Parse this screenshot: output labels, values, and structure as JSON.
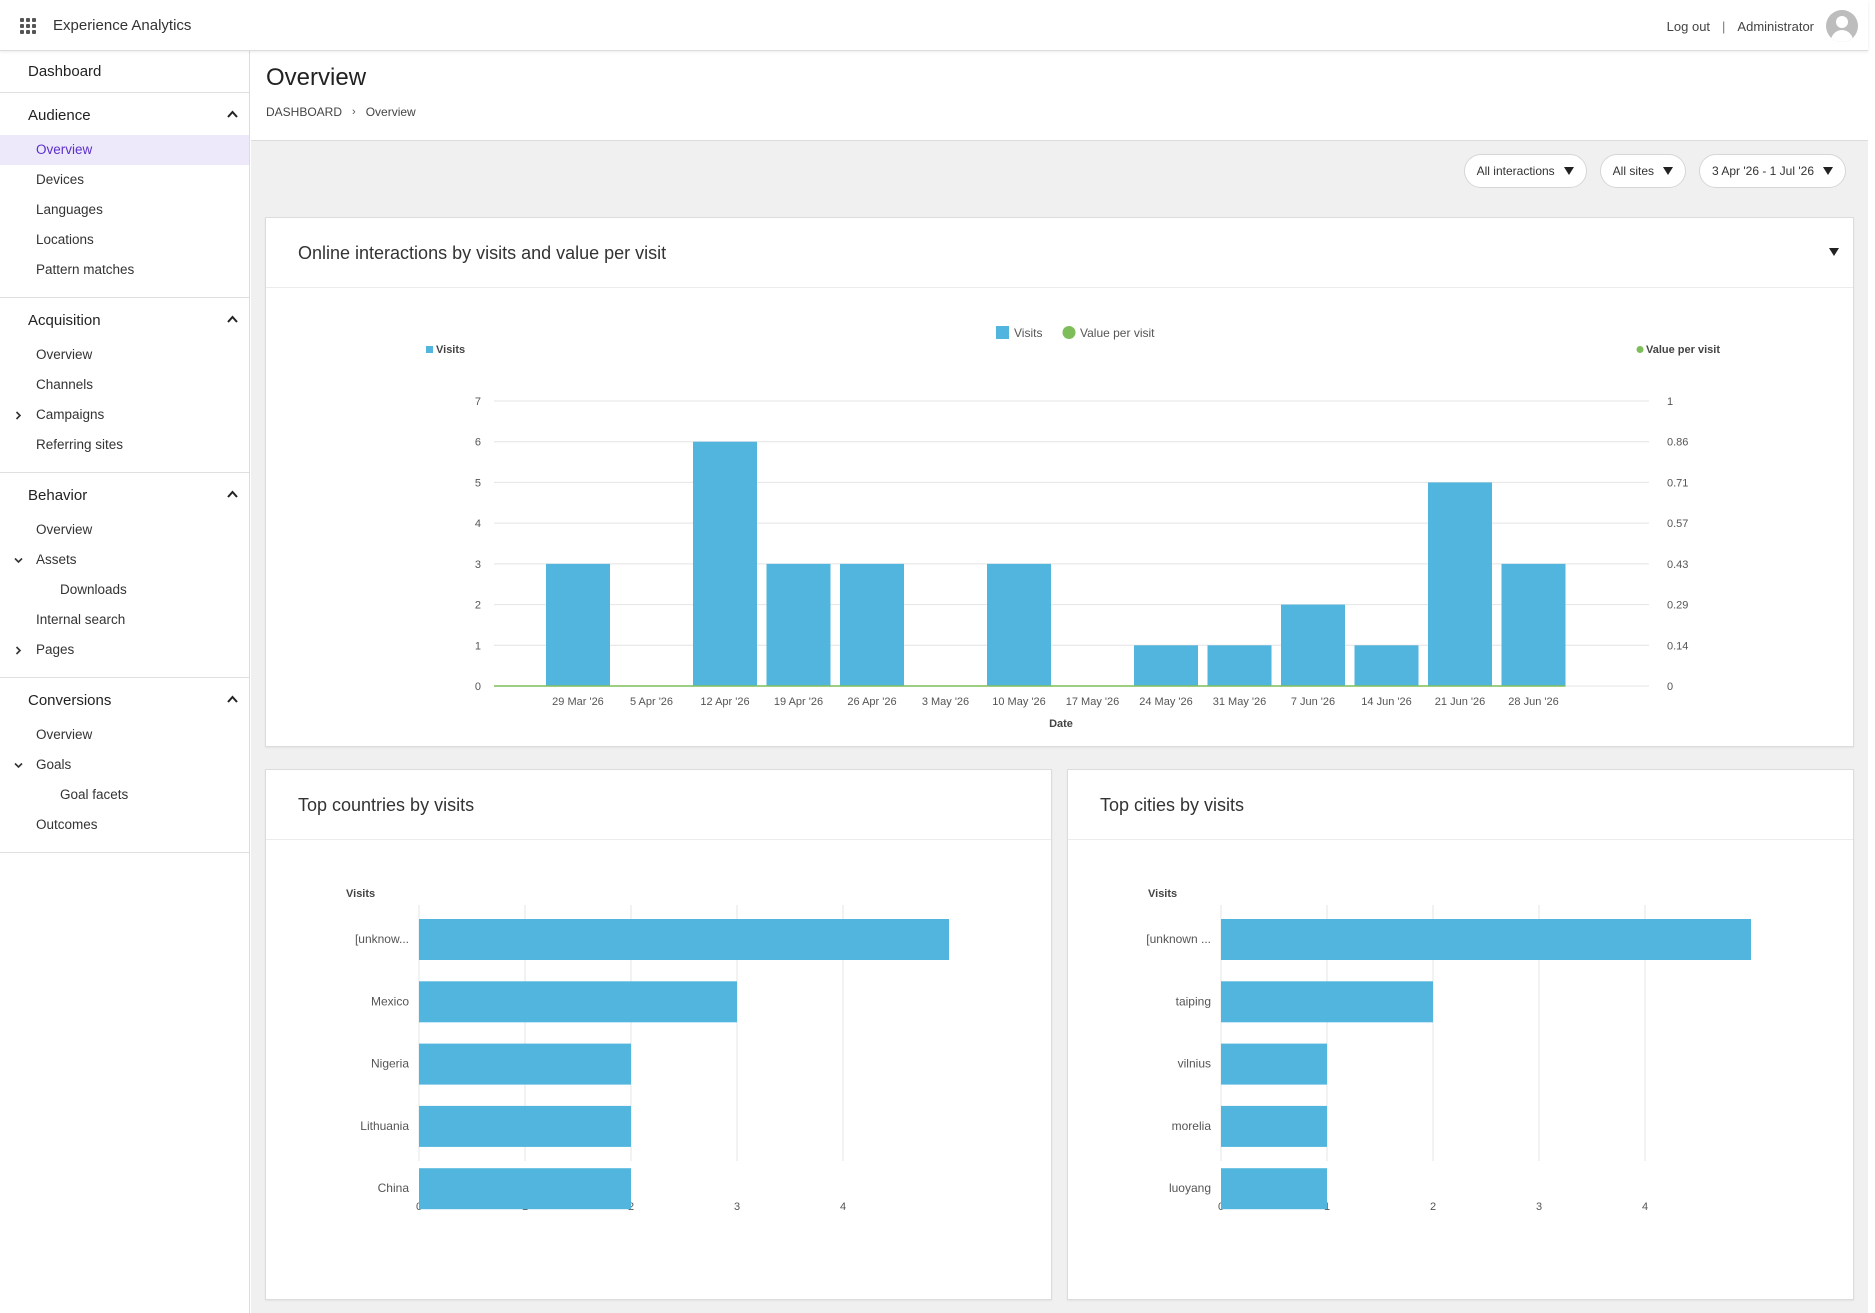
{
  "app": {
    "title": "Experience Analytics"
  },
  "topbar": {
    "logout": "Log out",
    "separator": "|",
    "user": "Administrator"
  },
  "sidebar": {
    "dashboard": "Dashboard",
    "groups": [
      {
        "label": "Audience",
        "items": [
          {
            "label": "Overview",
            "active": true
          },
          {
            "label": "Devices"
          },
          {
            "label": "Languages"
          },
          {
            "label": "Locations"
          },
          {
            "label": "Pattern matches"
          }
        ]
      },
      {
        "label": "Acquisition",
        "items": [
          {
            "label": "Overview"
          },
          {
            "label": "Channels"
          },
          {
            "label": "Campaigns",
            "expander": "collapsed"
          },
          {
            "label": "Referring sites"
          }
        ]
      },
      {
        "label": "Behavior",
        "items": [
          {
            "label": "Overview"
          },
          {
            "label": "Assets",
            "expander": "expanded"
          },
          {
            "label": "Downloads",
            "sub": true
          },
          {
            "label": "Internal search"
          },
          {
            "label": "Pages",
            "expander": "collapsed"
          }
        ]
      },
      {
        "label": "Conversions",
        "items": [
          {
            "label": "Overview"
          },
          {
            "label": "Goals",
            "expander": "expanded"
          },
          {
            "label": "Goal facets",
            "sub": true
          },
          {
            "label": "Outcomes"
          }
        ]
      }
    ]
  },
  "page": {
    "title": "Overview",
    "breadcrumb": {
      "home": "DASHBOARD",
      "current": "Overview"
    }
  },
  "filters": {
    "interactions": "All interactions",
    "sites": "All sites",
    "date_range": "3 Apr '26 - 1 Jul '26"
  },
  "panels": {
    "main": "Online interactions by visits and value per visit",
    "countries": "Top countries by visits",
    "cities": "Top cities by visits"
  },
  "colors": {
    "bar": "#52b5de",
    "line": "#7dbe5b",
    "active_nav": "#5b2fc9",
    "active_nav_bg": "#ede9fb"
  },
  "icons": {
    "app": "app-grid-icon",
    "avatar": "user-avatar-icon",
    "collapse": "chevron-up-icon",
    "expand": "chevron-right-icon"
  },
  "chart_data": [
    {
      "type": "bar",
      "legend": [
        "Visits",
        "Value per visit"
      ],
      "legend_placement": "top-center",
      "xlabel": "Date",
      "ylabel": "Visits",
      "y2label": "Value per visit",
      "categories": [
        "29 Mar '26",
        "5 Apr '26",
        "12 Apr '26",
        "19 Apr '26",
        "26 Apr '26",
        "3 May '26",
        "10 May '26",
        "17 May '26",
        "24 May '26",
        "31 May '26",
        "7 Jun '26",
        "14 Jun '26",
        "21 Jun '26",
        "28 Jun '26"
      ],
      "series": [
        {
          "name": "Visits",
          "type": "bar",
          "axis": "left",
          "values": [
            3,
            0,
            6,
            3,
            3,
            0,
            3,
            0,
            1,
            1,
            2,
            1,
            5,
            3
          ]
        },
        {
          "name": "Value per visit",
          "type": "line",
          "axis": "right",
          "values": [
            0,
            0,
            0,
            0,
            0,
            0,
            0,
            0,
            0,
            0,
            0,
            0,
            0,
            0
          ]
        }
      ],
      "ylim": [
        0,
        7
      ],
      "yticks": [
        "0",
        "1",
        "2",
        "3",
        "4",
        "5",
        "6",
        "7"
      ],
      "y2lim": [
        0,
        1
      ],
      "y2ticks": [
        "0",
        "0.14",
        "0.29",
        "0.43",
        "0.57",
        "0.71",
        "0.86",
        "1"
      ],
      "grid": true
    },
    {
      "type": "bar",
      "orientation": "horizontal",
      "ylabel": "Visits",
      "categories": [
        "[unknow...",
        "Mexico",
        "Nigeria",
        "Lithuania",
        "China"
      ],
      "values": [
        5,
        3,
        2,
        2,
        2
      ],
      "xlim": [
        0,
        5
      ],
      "xticks": [
        "0",
        "1",
        "2",
        "3",
        "4"
      ],
      "grid": true
    },
    {
      "type": "bar",
      "orientation": "horizontal",
      "ylabel": "Visits",
      "categories": [
        "[unknown ...",
        "taiping",
        "vilnius",
        "morelia",
        "luoyang"
      ],
      "values": [
        5,
        2,
        1,
        1,
        1
      ],
      "xlim": [
        0,
        5
      ],
      "xticks": [
        "0",
        "1",
        "2",
        "3",
        "4"
      ],
      "grid": true
    }
  ]
}
